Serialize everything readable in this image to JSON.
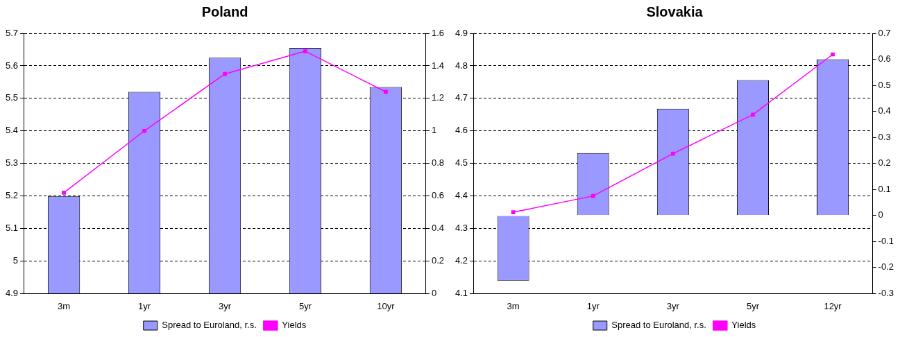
{
  "chart_data": [
    {
      "type": "bar",
      "title": "Poland",
      "categories": [
        "3m",
        "1yr",
        "3yr",
        "5yr",
        "10yr"
      ],
      "ylim": [
        4.9,
        5.7
      ],
      "yticks": [
        4.9,
        5,
        5.1,
        5.2,
        5.3,
        5.4,
        5.5,
        5.6,
        5.7
      ],
      "y2lim": [
        0,
        1.6
      ],
      "y2ticks": [
        0,
        0.2,
        0.4,
        0.6,
        0.8,
        1,
        1.2,
        1.4,
        1.6
      ],
      "grid": "y",
      "legend": "bottom",
      "marker": "square",
      "series": [
        {
          "name": "Spread to Euroland, r.s.",
          "axis": "y2",
          "color": "#9999ff",
          "values": [
            0.6,
            1.24,
            1.45,
            1.51,
            1.27
          ]
        },
        {
          "name": "Yields",
          "type": "line",
          "color": "#ff00ff",
          "values": [
            5.21,
            5.4,
            5.575,
            5.645,
            5.52
          ]
        }
      ]
    },
    {
      "type": "bar",
      "title": "Slovakia",
      "categories": [
        "3m",
        "1yr",
        "3yr",
        "5yr",
        "12yr"
      ],
      "ylim": [
        4.1,
        4.9
      ],
      "yticks": [
        4.1,
        4.2,
        4.3,
        4.4,
        4.5,
        4.6,
        4.7,
        4.8,
        4.9
      ],
      "y2lim": [
        -0.3,
        0.7
      ],
      "y2ticks": [
        -0.3,
        -0.2,
        -0.1,
        0,
        0.1,
        0.2,
        0.3,
        0.4,
        0.5,
        0.6,
        0.7
      ],
      "grid": "y",
      "legend": "bottom",
      "marker": "square",
      "series": [
        {
          "name": "Spread to Euroland, r.s.",
          "axis": "y2",
          "color": "#9999ff",
          "values": [
            -0.25,
            0.24,
            0.41,
            0.52,
            0.6
          ]
        },
        {
          "name": "Yields",
          "type": "line",
          "color": "#ff00ff",
          "values": [
            4.35,
            4.4,
            4.53,
            4.65,
            4.835
          ]
        }
      ]
    }
  ]
}
